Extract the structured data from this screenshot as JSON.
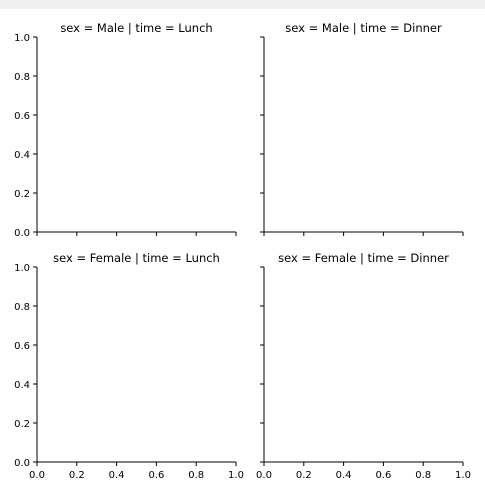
{
  "chart_data": [
    {
      "type": "scatter",
      "title": "sex = Male | time = Lunch",
      "xlabel": "",
      "ylabel": "",
      "xlim": [
        0,
        1
      ],
      "ylim": [
        0,
        1
      ],
      "xticks": [
        "0.0",
        "0.2",
        "0.4",
        "0.6",
        "0.8",
        "1.0"
      ],
      "yticks": [
        "0.0",
        "0.2",
        "0.4",
        "0.6",
        "0.8",
        "1.0"
      ],
      "show_xticklabels": false,
      "show_yticklabels": true,
      "series": [],
      "grid": false
    },
    {
      "type": "scatter",
      "title": "sex = Male | time = Dinner",
      "xlabel": "",
      "ylabel": "",
      "xlim": [
        0,
        1
      ],
      "ylim": [
        0,
        1
      ],
      "xticks": [
        "0.0",
        "0.2",
        "0.4",
        "0.6",
        "0.8",
        "1.0"
      ],
      "yticks": [
        "0.0",
        "0.2",
        "0.4",
        "0.6",
        "0.8",
        "1.0"
      ],
      "show_xticklabels": false,
      "show_yticklabels": false,
      "series": [],
      "grid": false
    },
    {
      "type": "scatter",
      "title": "sex = Female | time = Lunch",
      "xlabel": "",
      "ylabel": "",
      "xlim": [
        0,
        1
      ],
      "ylim": [
        0,
        1
      ],
      "xticks": [
        "0.0",
        "0.2",
        "0.4",
        "0.6",
        "0.8",
        "1.0"
      ],
      "yticks": [
        "0.0",
        "0.2",
        "0.4",
        "0.6",
        "0.8",
        "1.0"
      ],
      "show_xticklabels": true,
      "show_yticklabels": true,
      "series": [],
      "grid": false
    },
    {
      "type": "scatter",
      "title": "sex = Female | time = Dinner",
      "xlabel": "",
      "ylabel": "",
      "xlim": [
        0,
        1
      ],
      "ylim": [
        0,
        1
      ],
      "xticks": [
        "0.0",
        "0.2",
        "0.4",
        "0.6",
        "0.8",
        "1.0"
      ],
      "yticks": [
        "0.0",
        "0.2",
        "0.4",
        "0.6",
        "0.8",
        "1.0"
      ],
      "show_xticklabels": true,
      "show_yticklabels": false,
      "series": [],
      "grid": false
    }
  ]
}
